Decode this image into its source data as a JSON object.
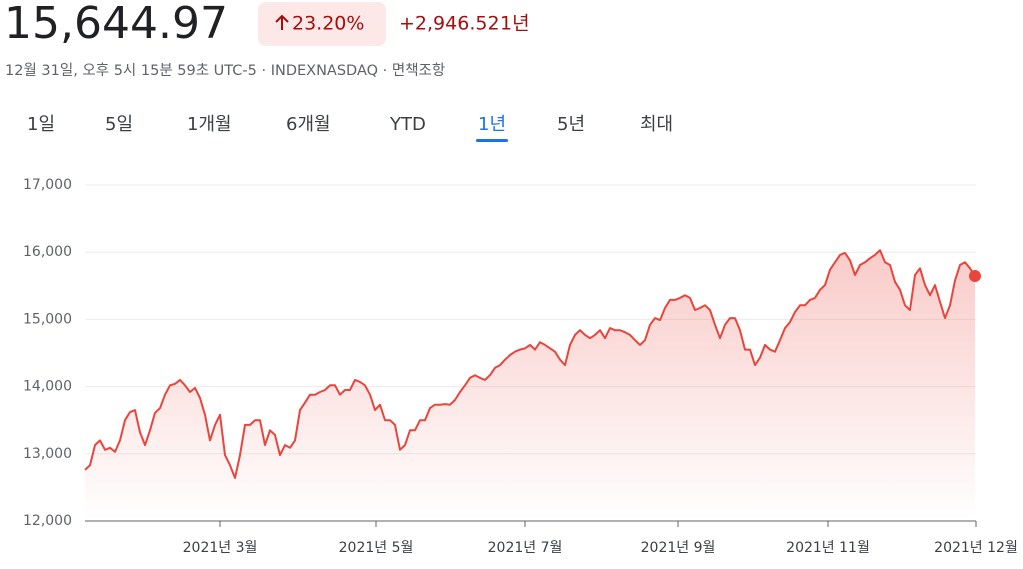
{
  "header": {
    "price": "15,644.97",
    "change_percent": "23.20%",
    "change": "+2,946.52",
    "period": "1년",
    "subtitle": "12월 31일, 오후 5시 15분 59초 UTC-5 · INDEXNASDAQ · 면책조항"
  },
  "tabs": [
    "1일",
    "5일",
    "1개월",
    "6개월",
    "YTD",
    "1년",
    "5년",
    "최대"
  ],
  "selected_tab": 5,
  "chart_data": {
    "type": "line",
    "color": "#e8453c",
    "grid": true,
    "values": [
      12760,
      12830,
      13130,
      13200,
      13060,
      13090,
      13030,
      13200,
      13500,
      13620,
      13650,
      13320,
      13130,
      13350,
      13610,
      13680,
      13880,
      14020,
      14040,
      14100,
      14020,
      13920,
      13980,
      13830,
      13580,
      13200,
      13430,
      13580,
      12980,
      12830,
      12640,
      12980,
      13430,
      13430,
      13500,
      13500,
      13130,
      13350,
      13280,
      12980,
      13130,
      13090,
      13200,
      13650,
      13760,
      13880,
      13880,
      13920,
      13950,
      14020,
      14020,
      13880,
      13950,
      13950,
      14100,
      14070,
      14020,
      13880,
      13650,
      13730,
      13500,
      13500,
      13430,
      13060,
      13130,
      13350,
      13350,
      13500,
      13500,
      13680,
      13730,
      13730,
      13740,
      13730,
      13800,
      13920,
      14020,
      14130,
      14170,
      14130,
      14100,
      14170,
      14280,
      14320,
      14400,
      14470,
      14520,
      14550,
      14570,
      14620,
      14550,
      14660,
      14620,
      14570,
      14520,
      14400,
      14320,
      14620,
      14770,
      14840,
      14770,
      14720,
      14770,
      14840,
      14720,
      14870,
      14840,
      14840,
      14810,
      14770,
      14690,
      14620,
      14690,
      14920,
      15020,
      14990,
      15170,
      15290,
      15290,
      15320,
      15360,
      15320,
      15140,
      15170,
      15210,
      15140,
      14920,
      14720,
      14920,
      15020,
      15020,
      14840,
      14550,
      14550,
      14320,
      14430,
      14620,
      14550,
      14520,
      14690,
      14870,
      14960,
      15110,
      15210,
      15210,
      15290,
      15320,
      15440,
      15510,
      15740,
      15850,
      15960,
      15990,
      15880,
      15660,
      15810,
      15850,
      15910,
      15960,
      16030,
      15850,
      15810,
      15560,
      15440,
      15210,
      15140,
      15660,
      15760,
      15510,
      15360,
      15510,
      15260,
      15020,
      15210,
      15580,
      15810,
      15850,
      15760,
      15645
    ],
    "xlim": [
      0,
      178.2
    ],
    "xticks": [
      {
        "value": 27,
        "label": "2021년 3월"
      },
      {
        "value": 58.2,
        "label": "2021년 5월"
      },
      {
        "value": 88,
        "label": "2021년 7월"
      },
      {
        "value": 118.6,
        "label": "2021년 9월"
      },
      {
        "value": 148.6,
        "label": "2021년 11월"
      },
      {
        "value": 178.2,
        "label": "2021년 12월"
      }
    ],
    "ylim": [
      12000,
      17000
    ],
    "yticks": [
      {
        "value": 12000,
        "label": "12,000"
      },
      {
        "value": 13000,
        "label": "13,000"
      },
      {
        "value": 14000,
        "label": "14,000"
      },
      {
        "value": 15000,
        "label": "15,000"
      },
      {
        "value": 16000,
        "label": "16,000"
      },
      {
        "value": 17000,
        "label": "17,000"
      }
    ]
  }
}
